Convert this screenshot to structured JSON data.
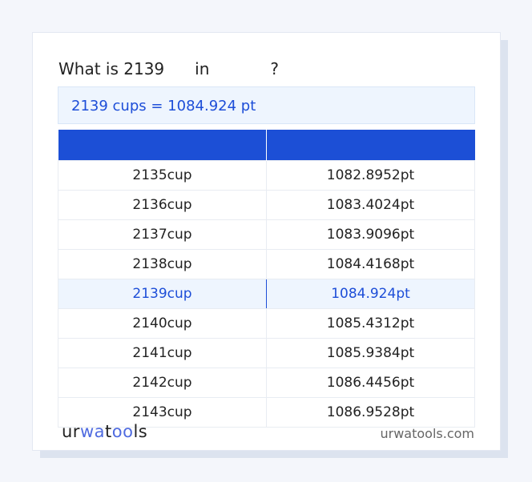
{
  "title": {
    "prefix": "What is 2139",
    "mid": "in",
    "suffix": "?"
  },
  "result": "2139 cups = 1084.924 pt",
  "table": {
    "headers": [
      "",
      ""
    ],
    "rows": [
      [
        "2135cup",
        "1082.8952pt"
      ],
      [
        "2136cup",
        "1083.4024pt"
      ],
      [
        "2137cup",
        "1083.9096pt"
      ],
      [
        "2138cup",
        "1084.4168pt"
      ],
      [
        "2139cup",
        "1084.924pt"
      ],
      [
        "2140cup",
        "1085.4312pt"
      ],
      [
        "2141cup",
        "1085.9384pt"
      ],
      [
        "2142cup",
        "1086.4456pt"
      ],
      [
        "2143cup",
        "1086.9528pt"
      ]
    ],
    "highlight_index": 4
  },
  "footer": {
    "logo": "urwatools",
    "site": "urwatools.com"
  },
  "colors": {
    "accent": "#1c4fd6",
    "highlight_bg": "#eef5fe"
  }
}
